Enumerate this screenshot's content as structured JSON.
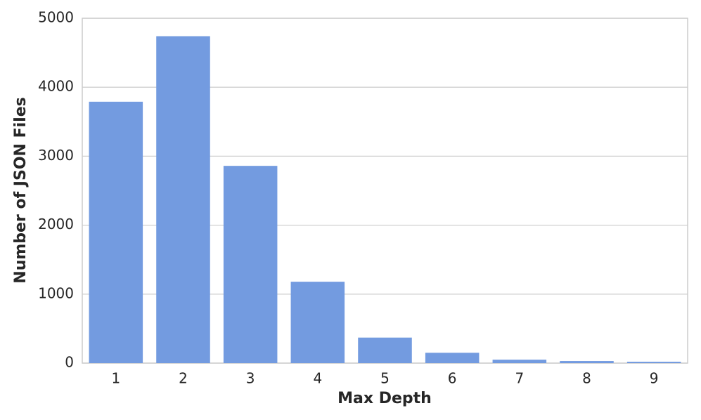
{
  "chart_data": {
    "type": "bar",
    "x_label": "Max Depth",
    "y_label": "Number of JSON Files",
    "categories": [
      "1",
      "2",
      "3",
      "4",
      "5",
      "6",
      "7",
      "8",
      "9"
    ],
    "values": [
      3790,
      4740,
      2860,
      1180,
      370,
      150,
      50,
      30,
      20
    ],
    "color": "#739be0",
    "ylim": [
      0,
      5000
    ],
    "yticks": [
      0,
      1000,
      2000,
      3000,
      4000,
      5000
    ],
    "grid": true
  }
}
